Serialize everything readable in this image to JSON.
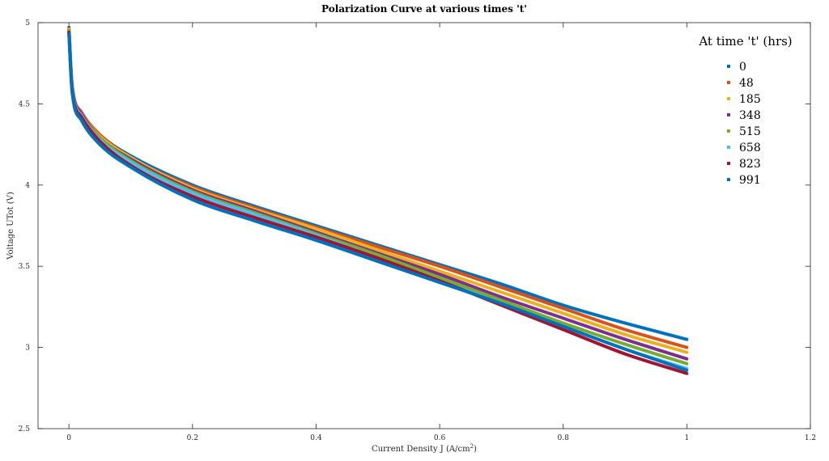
{
  "chart_data": {
    "type": "line",
    "title": "Polarization Curve at various times 't'",
    "xlabel": "Current Density J (A/cm",
    "xlabel_sup": "2",
    "xlabel_tail": ")",
    "ylabel": "Voltage UTot (V)",
    "xlim": [
      -0.05,
      1.2
    ],
    "ylim": [
      2.5,
      5
    ],
    "xticks": [
      0,
      0.2,
      0.4,
      0.6,
      0.8,
      1,
      1.2
    ],
    "xtick_labels": [
      "0",
      "0.2",
      "0.4",
      "0.6",
      "0.8",
      "1",
      "1.2"
    ],
    "yticks": [
      2.5,
      3,
      3.5,
      4,
      4.5,
      5
    ],
    "ytick_labels": [
      "2.5",
      "3",
      "3.5",
      "4",
      "4.5",
      "5"
    ],
    "grid": false,
    "legend_title": "At time 't' (hrs)",
    "legend_position": "top-right",
    "x": [
      0,
      0.005,
      0.02,
      0.05,
      0.1,
      0.2,
      0.3,
      0.4,
      0.5,
      0.6,
      0.7,
      0.8,
      0.9,
      1.0
    ],
    "series": [
      {
        "name": "0",
        "color": "#0072BD",
        "values": [
          4.97,
          4.62,
          4.45,
          4.31,
          4.18,
          4.0,
          3.87,
          3.75,
          3.63,
          3.51,
          3.39,
          3.26,
          3.15,
          3.05
        ]
      },
      {
        "name": "48",
        "color": "#D95319",
        "values": [
          4.96,
          4.62,
          4.45,
          4.31,
          4.17,
          3.99,
          3.86,
          3.74,
          3.62,
          3.5,
          3.37,
          3.24,
          3.11,
          3.0
        ]
      },
      {
        "name": "185",
        "color": "#EDB120",
        "values": [
          4.96,
          4.61,
          4.44,
          4.3,
          4.17,
          3.98,
          3.85,
          3.73,
          3.6,
          3.47,
          3.34,
          3.21,
          3.08,
          2.97
        ]
      },
      {
        "name": "348",
        "color": "#7E2F8E",
        "values": [
          4.95,
          4.61,
          4.44,
          4.29,
          4.16,
          3.97,
          3.84,
          3.71,
          3.58,
          3.45,
          3.31,
          3.18,
          3.05,
          2.93
        ]
      },
      {
        "name": "515",
        "color": "#77AC30",
        "values": [
          4.95,
          4.6,
          4.43,
          4.29,
          4.15,
          3.96,
          3.83,
          3.7,
          3.57,
          3.43,
          3.29,
          3.15,
          3.02,
          2.9
        ]
      },
      {
        "name": "658",
        "color": "#4DBEEE",
        "values": [
          4.94,
          4.6,
          4.43,
          4.28,
          4.14,
          3.95,
          3.82,
          3.69,
          3.55,
          3.41,
          3.27,
          3.13,
          2.99,
          2.87
        ]
      },
      {
        "name": "823",
        "color": "#A2142F",
        "values": [
          4.94,
          4.59,
          4.42,
          4.27,
          4.12,
          3.93,
          3.8,
          3.68,
          3.55,
          3.41,
          3.26,
          3.11,
          2.96,
          2.84
        ]
      },
      {
        "name": "991",
        "color": "#0072BD",
        "values": [
          4.93,
          4.58,
          4.4,
          4.25,
          4.11,
          3.91,
          3.78,
          3.66,
          3.53,
          3.4,
          3.27,
          3.13,
          2.99,
          2.86
        ]
      }
    ]
  }
}
